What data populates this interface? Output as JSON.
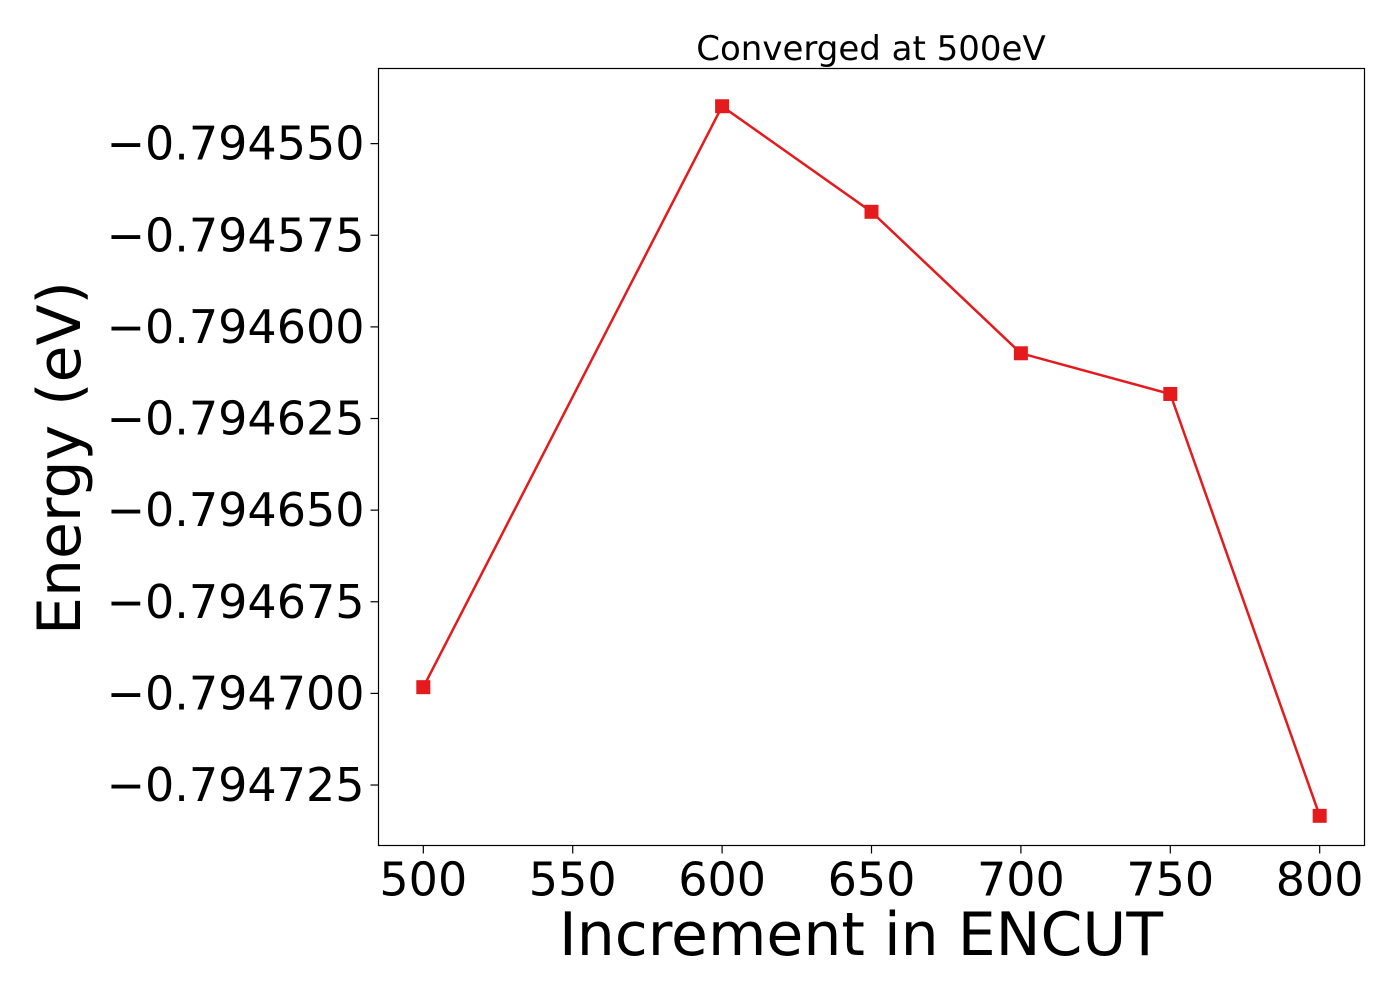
{
  "chart_data": {
    "type": "line",
    "title": "Converged at 500eV",
    "xlabel": "Increment in ENCUT",
    "ylabel": "Energy (eV)",
    "x": [
      500,
      600,
      650,
      700,
      750,
      800
    ],
    "xlim": [
      485,
      815
    ],
    "ylim": [
      -0.7947415,
      -0.7945295
    ],
    "x_ticks": [
      500,
      550,
      600,
      650,
      700,
      750,
      800
    ],
    "x_tick_labels": [
      "500",
      "550",
      "600",
      "650",
      "700",
      "750",
      "800"
    ],
    "y_ticks": [
      -0.79455,
      -0.794575,
      -0.7946,
      -0.794625,
      -0.79465,
      -0.794675,
      -0.7947,
      -0.794725
    ],
    "y_tick_labels": [
      "−0.794550",
      "−0.794575",
      "−0.794600",
      "−0.794625",
      "−0.794650",
      "−0.794675",
      "−0.794700",
      "−0.794725"
    ],
    "grid": false,
    "series": [
      {
        "values": [
          -0.7946983,
          -0.7945398,
          -0.7945686,
          -0.7946072,
          -0.7946183,
          -0.7947334
        ],
        "color": "#e41a1c",
        "marker": "square"
      }
    ]
  }
}
